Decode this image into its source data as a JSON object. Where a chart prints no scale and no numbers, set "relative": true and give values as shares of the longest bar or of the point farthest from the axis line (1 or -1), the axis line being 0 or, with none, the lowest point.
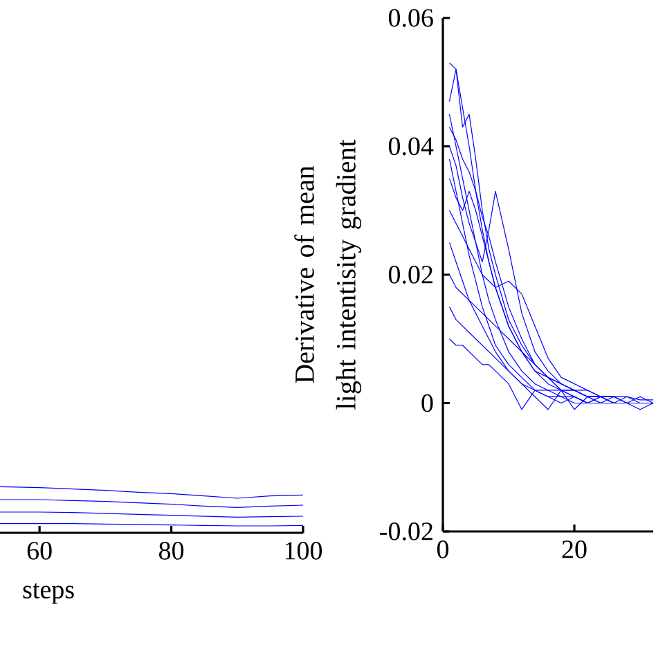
{
  "chart_data": [
    {
      "type": "line",
      "relative": true,
      "xlabel": "steps",
      "xlim": [
        54,
        100
      ],
      "xticks": [
        60,
        80,
        100
      ],
      "tick_labels": "x",
      "marker": "none",
      "line_style": "solid",
      "x": [
        54,
        60,
        65,
        70,
        75,
        80,
        85,
        90,
        95,
        100
      ],
      "series": [
        {
          "color": "#0000ff",
          "values": [
            1.0,
            0.98,
            0.95,
            0.92,
            0.88,
            0.85,
            0.8,
            0.75,
            0.8,
            0.82
          ]
        },
        {
          "color": "#0000ff",
          "values": [
            0.72,
            0.72,
            0.7,
            0.68,
            0.65,
            0.62,
            0.58,
            0.55,
            0.58,
            0.6
          ]
        },
        {
          "color": "#0000ff",
          "values": [
            0.45,
            0.45,
            0.44,
            0.42,
            0.4,
            0.38,
            0.36,
            0.34,
            0.35,
            0.36
          ]
        },
        {
          "color": "#0000ff",
          "values": [
            0.2,
            0.2,
            0.2,
            0.19,
            0.18,
            0.17,
            0.16,
            0.15,
            0.15,
            0.16
          ]
        }
      ]
    },
    {
      "type": "line",
      "ylabel": "Derivative of mean light intentisity gradient",
      "xlim": [
        0,
        32
      ],
      "xticks": [
        0,
        20
      ],
      "ylim": [
        -0.02,
        0.06
      ],
      "yticks": [
        -0.02,
        0,
        0.02,
        0.04,
        0.06
      ],
      "marker": "none",
      "line_style": "solid",
      "x": [
        1,
        2,
        3,
        4,
        5,
        6,
        7,
        8,
        10,
        12,
        14,
        16,
        18,
        20,
        22,
        24,
        26,
        28,
        30,
        32
      ],
      "series": [
        {
          "color": "#0000ff",
          "values": [
            0.053,
            0.052,
            0.046,
            0.04,
            0.033,
            0.027,
            0.022,
            0.018,
            0.012,
            0.008,
            0.006,
            0.004,
            0.003,
            0.002,
            0.002,
            0.001,
            0.001,
            0.001,
            0.0005,
            0.0005
          ]
        },
        {
          "color": "#0000ff",
          "values": [
            0.047,
            0.052,
            0.043,
            0.045,
            0.038,
            0.03,
            0.024,
            0.02,
            0.013,
            0.009,
            0.006,
            0.004,
            0.003,
            0.002,
            0.001,
            0.001,
            0.001,
            0.0,
            0.001,
            0.0
          ]
        },
        {
          "color": "#0000ff",
          "values": [
            0.04,
            0.037,
            0.032,
            0.028,
            0.025,
            0.022,
            0.027,
            0.033,
            0.024,
            0.014,
            0.008,
            0.005,
            0.003,
            0.002,
            0.001,
            0.001,
            0.0,
            0.001,
            0.0,
            0.0
          ]
        },
        {
          "color": "#0000ff",
          "values": [
            0.03,
            0.028,
            0.026,
            0.024,
            0.022,
            0.02,
            0.019,
            0.018,
            0.019,
            0.017,
            0.012,
            0.007,
            0.004,
            0.003,
            0.002,
            0.001,
            0.001,
            0.0,
            0.0,
            0.0
          ]
        },
        {
          "color": "#0000ff",
          "values": [
            0.045,
            0.04,
            0.035,
            0.03,
            0.025,
            0.02,
            0.016,
            0.013,
            0.008,
            0.005,
            0.003,
            0.002,
            0.002,
            0.001,
            0.0,
            0.001,
            0.0,
            0.0,
            0.0,
            0.0
          ]
        },
        {
          "color": "#0000ff",
          "values": [
            0.038,
            0.033,
            0.028,
            0.023,
            0.019,
            0.015,
            0.012,
            0.009,
            0.006,
            0.004,
            0.002,
            0.002,
            0.001,
            0.001,
            0.0,
            0.0,
            0.0,
            0.0,
            0.0,
            0.0
          ]
        },
        {
          "color": "#0000ff",
          "values": [
            0.025,
            0.022,
            0.019,
            0.016,
            0.014,
            0.012,
            0.01,
            0.008,
            0.005,
            0.003,
            0.001,
            -0.001,
            0.002,
            0.001,
            0.0,
            0.001,
            0.0,
            0.0,
            -0.001,
            0.0
          ]
        },
        {
          "color": "#0000ff",
          "values": [
            0.015,
            0.013,
            0.012,
            0.011,
            0.01,
            0.009,
            0.008,
            0.007,
            0.005,
            0.003,
            0.002,
            0.001,
            0.001,
            0.0,
            0.0,
            0.0,
            0.0,
            0.0,
            0.0,
            0.0
          ]
        },
        {
          "color": "#0000ff",
          "values": [
            0.01,
            0.009,
            0.009,
            0.008,
            0.007,
            0.006,
            0.006,
            0.005,
            0.003,
            -0.001,
            0.002,
            0.001,
            0.0,
            0.001,
            0.0,
            0.0,
            0.0,
            0.0,
            0.0,
            0.0
          ]
        },
        {
          "color": "#0000ff",
          "values": [
            0.035,
            0.032,
            0.03,
            0.033,
            0.03,
            0.026,
            0.022,
            0.018,
            0.012,
            0.008,
            0.005,
            0.004,
            0.002,
            0.002,
            0.001,
            0.0,
            0.001,
            0.0,
            0.0,
            0.0
          ]
        },
        {
          "color": "#0000ff",
          "values": [
            0.02,
            0.018,
            0.017,
            0.016,
            0.015,
            0.014,
            0.013,
            0.012,
            0.01,
            0.008,
            0.005,
            0.003,
            0.002,
            0.002,
            0.001,
            0.001,
            0.0,
            0.0,
            0.0,
            0.0
          ]
        },
        {
          "color": "#0000ff",
          "values": [
            0.043,
            0.041,
            0.038,
            0.036,
            0.033,
            0.029,
            0.026,
            0.022,
            0.015,
            0.01,
            0.006,
            0.004,
            0.002,
            -0.001,
            0.001,
            0.0,
            0.0,
            0.0,
            0.0,
            0.0
          ]
        }
      ]
    }
  ]
}
